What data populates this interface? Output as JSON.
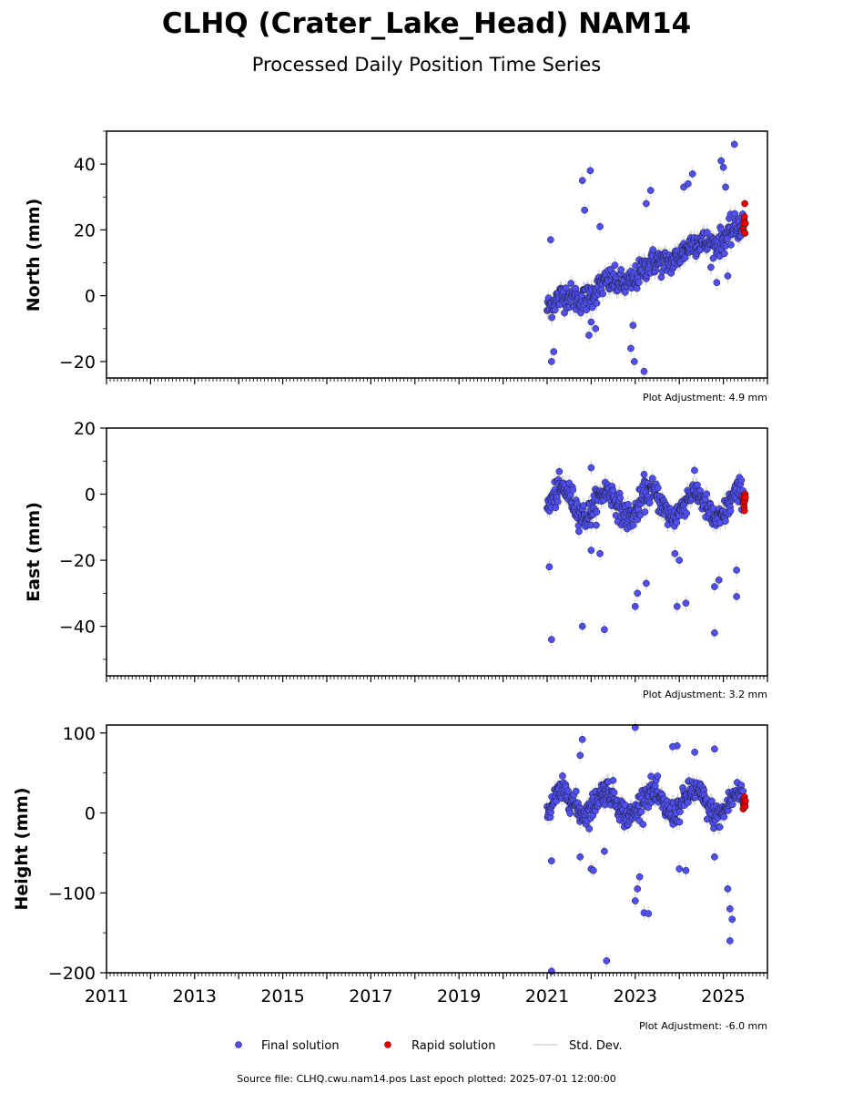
{
  "title": "CLHQ (Crater_Lake_Head) NAM14",
  "subtitle": "Processed Daily Position Time Series",
  "legend": {
    "final": "Final solution",
    "rapid": "Rapid solution",
    "std": "Std. Dev."
  },
  "footer": "Source file: CLHQ.cwu.nam14.pos  Last epoch plotted: 2025-07-01 12:00:00",
  "colors": {
    "final": "#4f4ff5",
    "rapid": "#e80000",
    "std": "#d3d3d3"
  },
  "chart_data": [
    {
      "type": "scatter",
      "panel": "north",
      "ylabel": "North (mm)",
      "adjustment": "Plot Adjustment: 4.9 mm",
      "xlim": [
        2011.0,
        2026.0
      ],
      "ylim": [
        -25,
        50
      ],
      "yticks": [
        -20,
        0,
        20,
        40
      ],
      "ytick_labels": [
        "−20",
        "0",
        "20",
        "40"
      ],
      "xticks": [
        2011,
        2013,
        2015,
        2017,
        2019,
        2021,
        2023,
        2025
      ],
      "final_period": [
        2021.0,
        2025.45
      ],
      "rapid_period": [
        2025.45,
        2025.5
      ],
      "trend_points": [
        [
          2021.0,
          -3
        ],
        [
          2022.0,
          1
        ],
        [
          2023.0,
          6
        ],
        [
          2024.0,
          13
        ],
        [
          2025.0,
          18
        ],
        [
          2025.45,
          20
        ]
      ],
      "seasonal_amplitude": 1.5,
      "scatter_sd": 2,
      "outliers": [
        [
          2021.08,
          17
        ],
        [
          2021.1,
          -20
        ],
        [
          2021.15,
          -17
        ],
        [
          2021.8,
          35
        ],
        [
          2021.85,
          26
        ],
        [
          2021.98,
          38
        ],
        [
          2022.2,
          21
        ],
        [
          2021.95,
          -12
        ],
        [
          2022.0,
          -8
        ],
        [
          2022.1,
          -10
        ],
        [
          2022.9,
          -16
        ],
        [
          2022.95,
          -9
        ],
        [
          2022.98,
          -20
        ],
        [
          2023.2,
          -23
        ],
        [
          2023.35,
          32
        ],
        [
          2023.25,
          28
        ],
        [
          2024.1,
          33
        ],
        [
          2024.2,
          34
        ],
        [
          2024.3,
          37
        ],
        [
          2024.95,
          41
        ],
        [
          2025.0,
          39
        ],
        [
          2025.25,
          46
        ],
        [
          2025.05,
          33
        ],
        [
          2024.85,
          4
        ],
        [
          2025.1,
          6
        ]
      ],
      "rapid_values": [
        20,
        21,
        22,
        23,
        24,
        28,
        19,
        22
      ]
    },
    {
      "type": "scatter",
      "panel": "east",
      "ylabel": "East (mm)",
      "adjustment": "Plot Adjustment: 3.2 mm",
      "xlim": [
        2011.0,
        2026.0
      ],
      "ylim": [
        -55,
        20
      ],
      "yticks": [
        -40,
        -20,
        0,
        20
      ],
      "ytick_labels": [
        "−40",
        "−20",
        "0",
        "20"
      ],
      "xticks": [
        2011,
        2013,
        2015,
        2017,
        2019,
        2021,
        2023,
        2025
      ],
      "final_period": [
        2021.0,
        2025.45
      ],
      "rapid_period": [
        2025.45,
        2025.5
      ],
      "trend_points": [
        [
          2021.0,
          -2
        ],
        [
          2022.0,
          -3
        ],
        [
          2023.0,
          -3
        ],
        [
          2024.0,
          -3
        ],
        [
          2025.0,
          -4
        ],
        [
          2025.45,
          -3
        ]
      ],
      "seasonal_amplitude": 4,
      "scatter_sd": 2,
      "outliers": [
        [
          2021.1,
          -44
        ],
        [
          2021.8,
          -40
        ],
        [
          2022.3,
          -41
        ],
        [
          2024.8,
          -42
        ],
        [
          2021.05,
          -22
        ],
        [
          2022.0,
          -17
        ],
        [
          2022.2,
          -18
        ],
        [
          2023.0,
          -34
        ],
        [
          2023.05,
          -30
        ],
        [
          2023.25,
          -27
        ],
        [
          2023.2,
          6
        ],
        [
          2022.0,
          8
        ],
        [
          2023.95,
          -34
        ],
        [
          2024.15,
          -33
        ],
        [
          2025.3,
          -31
        ],
        [
          2024.8,
          -28
        ],
        [
          2024.9,
          -26
        ],
        [
          2025.3,
          -23
        ],
        [
          2023.9,
          -18
        ],
        [
          2024.0,
          -20
        ]
      ],
      "rapid_values": [
        -1,
        -2,
        -3,
        -4,
        -5,
        -2,
        0,
        -1
      ]
    },
    {
      "type": "scatter",
      "panel": "height",
      "ylabel": "Height (mm)",
      "adjustment": "Plot Adjustment: -6.0 mm",
      "xlim": [
        2011.0,
        2026.0
      ],
      "ylim": [
        -200,
        110
      ],
      "yticks": [
        -200,
        -100,
        0,
        100
      ],
      "ytick_labels": [
        "−200",
        "−100",
        "0",
        "100"
      ],
      "xticks": [
        2011,
        2013,
        2015,
        2017,
        2019,
        2021,
        2023,
        2025
      ],
      "xtick_labels": [
        "2011",
        "2013",
        "2015",
        "2017",
        "2019",
        "2021",
        "2023",
        "2025"
      ],
      "final_period": [
        2021.0,
        2025.45
      ],
      "rapid_period": [
        2025.45,
        2025.5
      ],
      "trend_points": [
        [
          2021.0,
          10
        ],
        [
          2022.0,
          15
        ],
        [
          2023.0,
          10
        ],
        [
          2024.0,
          15
        ],
        [
          2025.0,
          10
        ],
        [
          2025.45,
          10
        ]
      ],
      "seasonal_amplitude": 15,
      "scatter_sd": 8,
      "outliers": [
        [
          2021.1,
          -198
        ],
        [
          2022.35,
          -185
        ],
        [
          2023.0,
          107
        ],
        [
          2021.8,
          92
        ],
        [
          2021.75,
          72
        ],
        [
          2023.95,
          84
        ],
        [
          2023.85,
          83
        ],
        [
          2024.35,
          76
        ],
        [
          2024.8,
          80
        ],
        [
          2025.15,
          -160
        ],
        [
          2025.2,
          -133
        ],
        [
          2025.15,
          -120
        ],
        [
          2023.2,
          -125
        ],
        [
          2023.3,
          -126
        ],
        [
          2023.0,
          -110
        ],
        [
          2023.05,
          -95
        ],
        [
          2022.0,
          -70
        ],
        [
          2022.05,
          -72
        ],
        [
          2021.1,
          -60
        ],
        [
          2021.75,
          -55
        ],
        [
          2022.3,
          -48
        ],
        [
          2024.0,
          -70
        ],
        [
          2024.15,
          -72
        ],
        [
          2024.8,
          -55
        ],
        [
          2025.1,
          -95
        ],
        [
          2023.1,
          -80
        ]
      ],
      "rapid_values": [
        5,
        10,
        15,
        18,
        20,
        12,
        8,
        15
      ]
    }
  ]
}
